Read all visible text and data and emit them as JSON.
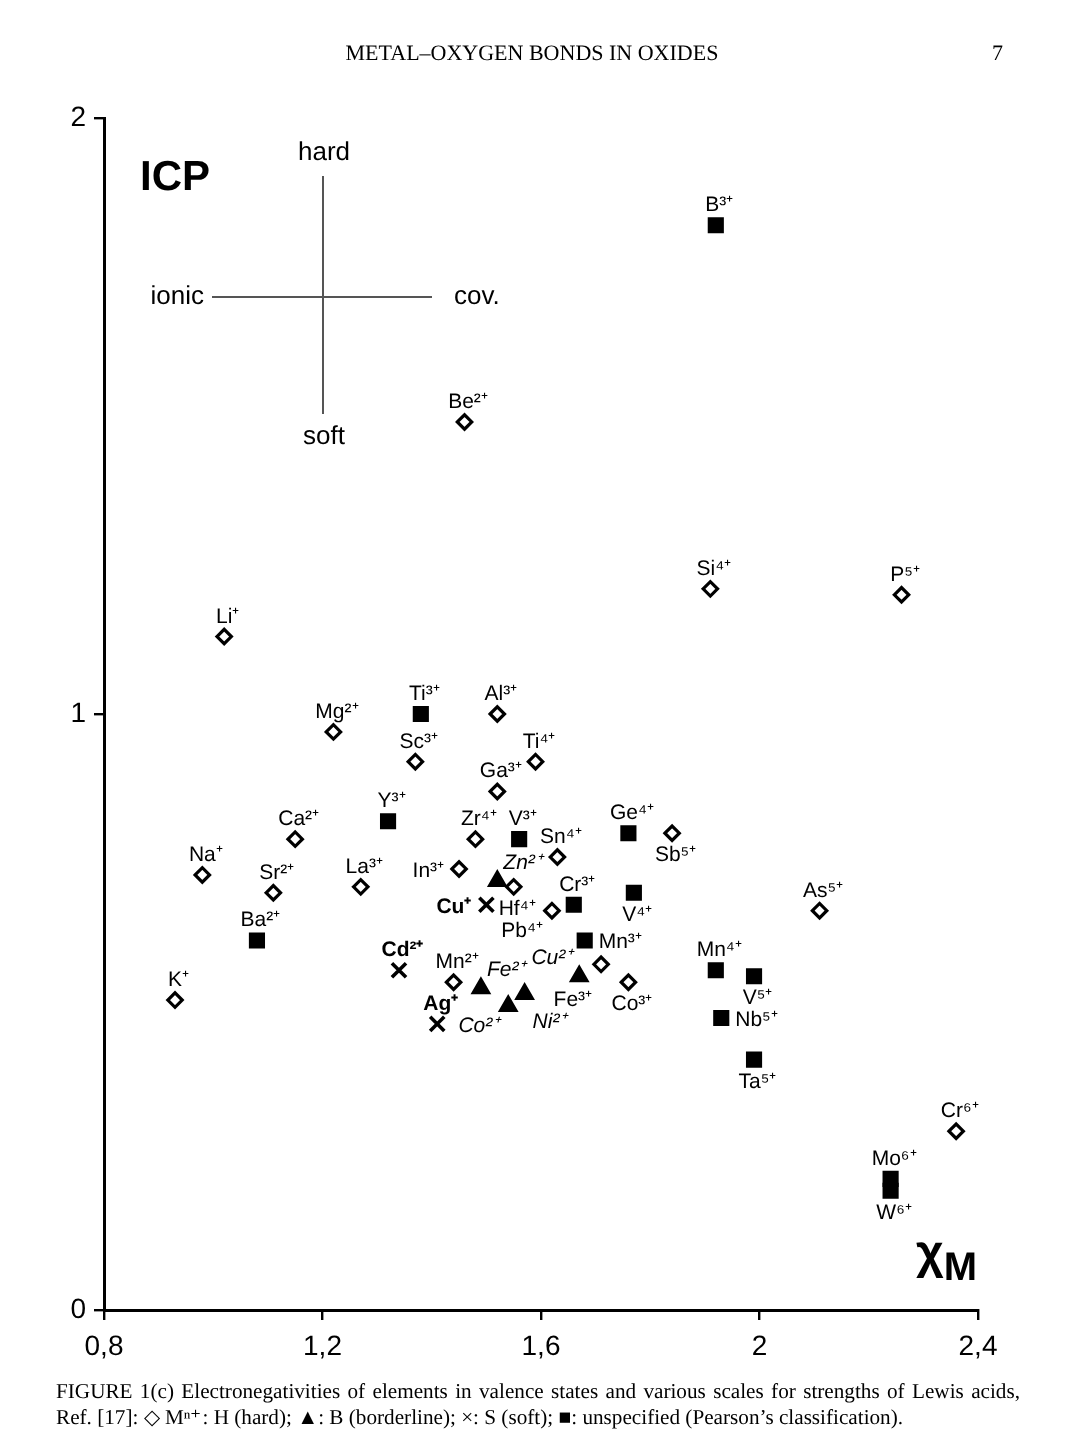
{
  "chart_data": {
    "type": "scatter",
    "xlabel": "χ$_{M}$",
    "ylabel": "ICP",
    "xlim": [
      0.8,
      2.4
    ],
    "xticks": [
      {
        "value": 0.8,
        "label": "0,8"
      },
      {
        "value": 1.2,
        "label": "1,2"
      },
      {
        "value": 1.6,
        "label": "1,6"
      },
      2,
      {
        "value": 2.4,
        "label": "2,4"
      }
    ],
    "ylim": [
      0,
      2
    ],
    "yticks": [
      0,
      1,
      2
    ],
    "series": [
      {
        "color": "#000000",
        "marker": "diamond",
        "x": [
          1.46,
          1.02,
          1.91,
          2.26,
          1.22,
          1.52,
          1.37,
          1.59,
          1.52,
          1.15,
          1.48,
          1.63,
          1.84,
          0.98,
          1.11,
          1.27,
          1.45,
          1.55,
          1.62,
          2.11,
          1.44,
          1.71,
          1.76,
          0.93,
          2.36
        ],
        "values": [
          1.49,
          1.13,
          1.21,
          1.2,
          0.97,
          1.0,
          0.92,
          0.92,
          0.87,
          0.79,
          0.79,
          0.76,
          0.8,
          0.73,
          0.7,
          0.71,
          0.74,
          0.71,
          0.67,
          0.67,
          0.55,
          0.58,
          0.55,
          0.52,
          0.3
        ]
      },
      {
        "color": "#000000",
        "marker": "triangle",
        "x": [
          1.52,
          1.49,
          1.54,
          1.57,
          1.67
        ],
        "values": [
          0.72,
          0.54,
          0.51,
          0.53,
          0.56
        ]
      },
      {
        "color": "#000000",
        "marker": "cross",
        "x": [
          1.5,
          1.34,
          1.41
        ],
        "values": [
          0.68,
          0.57,
          0.48
        ]
      },
      {
        "color": "#000000",
        "marker": "square",
        "x": [
          1.92,
          1.38,
          1.32,
          1.56,
          1.76,
          1.66,
          1.77,
          1.08,
          1.68,
          1.92,
          1.99,
          1.93,
          1.99,
          2.24,
          2.24
        ],
        "values": [
          1.82,
          1.0,
          0.82,
          0.79,
          0.8,
          0.68,
          0.7,
          0.62,
          0.62,
          0.57,
          0.56,
          0.49,
          0.42,
          0.22,
          0.2
        ]
      }
    ],
    "annotations": [
      "METAL–OXYGEN BONDS IN OXIDES",
      "7",
      "hard",
      "ionic",
      "cov.",
      "soft",
      "FIGURE 1(c) Electronegativities of elements in valence states and various scales for strengths of Lewis acids, Ref. [17]: ◇ Mⁿ⁺: H (hard); ▲: B (borderline); ×: S (soft); ■: unspecified (Pearson’s classification).",
      {
        "text": "B³⁺",
        "x": 1.92,
        "y": 1.82
      },
      {
        "text": "Be²⁺",
        "x": 1.46,
        "y": 1.49
      },
      {
        "text": "Si⁴⁺",
        "x": 1.91,
        "y": 1.21
      },
      {
        "text": "P⁵⁺",
        "x": 2.26,
        "y": 1.2
      },
      {
        "text": "Li⁺",
        "x": 1.02,
        "y": 1.13
      },
      {
        "text": "Ti³⁺",
        "x": 1.38,
        "y": 1.0
      },
      {
        "text": "Al³⁺",
        "x": 1.52,
        "y": 1.0
      },
      {
        "text": "Mg²⁺",
        "x": 1.22,
        "y": 0.97
      },
      {
        "text": "Sc³⁺",
        "x": 1.37,
        "y": 0.92
      },
      {
        "text": "Ti⁴⁺",
        "x": 1.59,
        "y": 0.92
      },
      {
        "text": "Ga³⁺",
        "x": 1.52,
        "y": 0.87
      },
      {
        "text": "Y³⁺",
        "x": 1.32,
        "y": 0.82
      },
      {
        "text": "Ge⁴⁺",
        "x": 1.76,
        "y": 0.8
      },
      {
        "text": "Sb⁵⁺",
        "x": 1.84,
        "y": 0.8
      },
      {
        "text": "Ca²⁺",
        "x": 1.15,
        "y": 0.79
      },
      {
        "text": "Zr⁴⁺",
        "x": 1.48,
        "y": 0.79
      },
      {
        "text": "V³⁺",
        "x": 1.56,
        "y": 0.79
      },
      {
        "text": "Sn⁴⁺",
        "x": 1.63,
        "y": 0.76
      },
      {
        "text": "In³⁺",
        "x": 1.45,
        "y": 0.74
      },
      {
        "text": "Na⁺",
        "x": 0.98,
        "y": 0.73
      },
      {
        "text": "Zn²⁺",
        "x": 1.52,
        "y": 0.72
      },
      {
        "text": "Hf⁴⁺",
        "x": 1.55,
        "y": 0.71
      },
      {
        "text": "La³⁺",
        "x": 1.27,
        "y": 0.71
      },
      {
        "text": "Sr²⁺",
        "x": 1.11,
        "y": 0.7
      },
      {
        "text": "V⁴⁺",
        "x": 1.77,
        "y": 0.7
      },
      {
        "text": "Cu⁺",
        "x": 1.5,
        "y": 0.68
      },
      {
        "text": "Cr³⁺",
        "x": 1.66,
        "y": 0.68
      },
      {
        "text": "Pb⁴⁺",
        "x": 1.62,
        "y": 0.67
      },
      {
        "text": "As⁵⁺",
        "x": 2.11,
        "y": 0.67
      },
      {
        "text": "Ba²⁺",
        "x": 1.08,
        "y": 0.62
      },
      {
        "text": "Mn³⁺",
        "x": 1.68,
        "y": 0.62
      },
      {
        "text": "Fe³⁺",
        "x": 1.71,
        "y": 0.58
      },
      {
        "text": "Cd²⁺",
        "x": 1.34,
        "y": 0.57
      },
      {
        "text": "Mn⁴⁺",
        "x": 1.92,
        "y": 0.57
      },
      {
        "text": "Cu²⁺",
        "x": 1.67,
        "y": 0.56
      },
      {
        "text": "V⁵⁺",
        "x": 1.99,
        "y": 0.56
      },
      {
        "text": "Mn²⁺",
        "x": 1.44,
        "y": 0.55
      },
      {
        "text": "Co³⁺",
        "x": 1.76,
        "y": 0.55
      },
      {
        "text": "Fe²⁺",
        "x": 1.49,
        "y": 0.54
      },
      {
        "text": "Ni²⁺",
        "x": 1.57,
        "y": 0.53
      },
      {
        "text": "K⁺",
        "x": 0.93,
        "y": 0.52
      },
      {
        "text": "Co²⁺",
        "x": 1.54,
        "y": 0.51
      },
      {
        "text": "Nb⁵⁺",
        "x": 1.93,
        "y": 0.49
      },
      {
        "text": "Ag⁺",
        "x": 1.41,
        "y": 0.48
      },
      {
        "text": "Ta⁵⁺",
        "x": 1.99,
        "y": 0.42
      },
      {
        "text": "Cr⁶⁺",
        "x": 2.36,
        "y": 0.3
      },
      {
        "text": "Mo⁶⁺",
        "x": 2.24,
        "y": 0.22
      },
      {
        "text": "W⁶⁺",
        "x": 2.24,
        "y": 0.2
      }
    ]
  }
}
